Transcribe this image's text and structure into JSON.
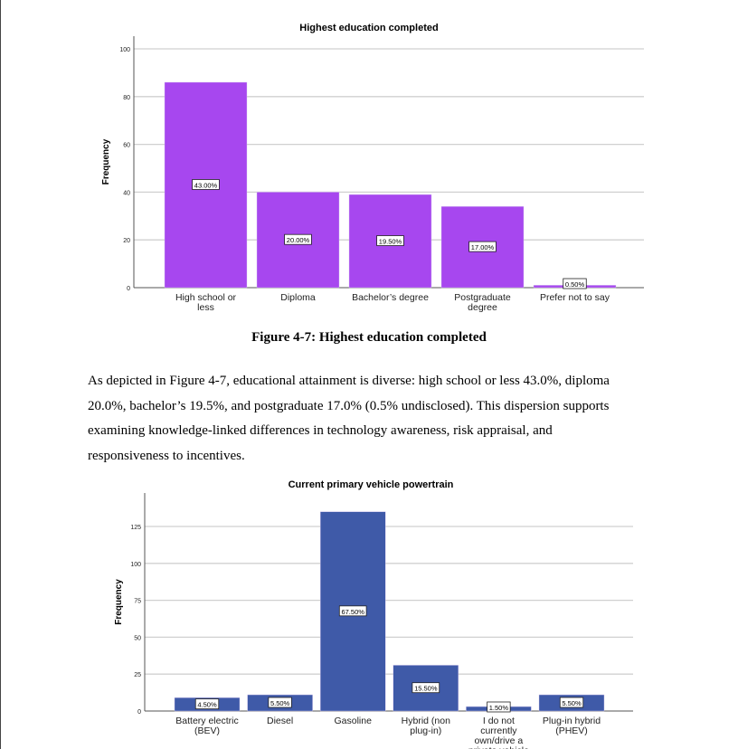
{
  "figure_caption": "Figure 4-7: Highest education completed",
  "paragraph_lines": [
    "As depicted in Figure 4-7, educational attainment is diverse: high school or less 43.0%, diploma",
    "20.0%, bachelor’s 19.5%, and postgraduate 17.0% (0.5% undisclosed). This dispersion supports",
    "examining knowledge-linked differences in technology awareness, risk appraisal, and",
    "responsiveness to incentives."
  ],
  "chart_data": [
    {
      "type": "bar",
      "title": "Highest education completed",
      "xlabel": "",
      "ylabel": "Frequency",
      "ylim": [
        0,
        100
      ],
      "yticks": [
        0,
        20,
        40,
        60,
        80,
        100
      ],
      "grid": true,
      "color": "#a747ef",
      "categories": [
        [
          "High school or",
          "less"
        ],
        [
          "Diploma"
        ],
        [
          "Bachelor’s degree"
        ],
        [
          "Postgraduate",
          "degree"
        ],
        [
          "Prefer not to say"
        ]
      ],
      "values": [
        86,
        40,
        39,
        34,
        1
      ],
      "data_labels": [
        "43.00%",
        "20.00%",
        "19.50%",
        "17.00%",
        "0.50%"
      ]
    },
    {
      "type": "bar",
      "title": "Current primary vehicle powertrain",
      "xlabel": "",
      "ylabel": "Frequency",
      "ylim": [
        0,
        140
      ],
      "yticks": [
        0,
        25,
        50,
        75,
        100,
        125
      ],
      "grid": true,
      "color": "#3f5aa8",
      "categories": [
        [
          "Battery electric",
          "(BEV)"
        ],
        [
          "Diesel"
        ],
        [
          "Gasoline"
        ],
        [
          "Hybrid (non",
          "plug-in)"
        ],
        [
          "I do not",
          "currently",
          "own/drive a",
          "private vehicle"
        ],
        [
          "Plug-in hybrid",
          "(PHEV)"
        ]
      ],
      "values": [
        9,
        11,
        135,
        31,
        3,
        11
      ],
      "data_labels": [
        "4.50%",
        "5.50%",
        "67.50%",
        "15.50%",
        "1.50%",
        "5.50%"
      ]
    }
  ]
}
